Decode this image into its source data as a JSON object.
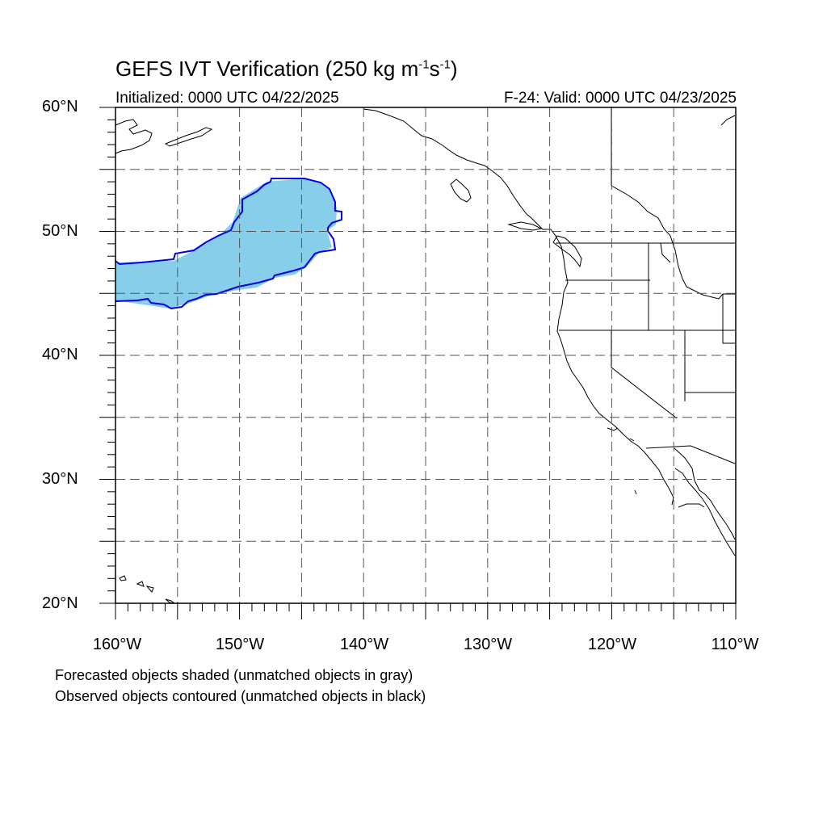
{
  "title": {
    "main": "GEFS IVT Verification (250 kg m",
    "sup1": "-1",
    "mid": "s",
    "sup2": "-1",
    "end": ")"
  },
  "initialized": "Initialized: 0000 UTC 04/22/2025",
  "valid": "F-24: Valid: 0000 UTC 04/23/2025",
  "lat_labels": [
    "60°N",
    "50°N",
    "40°N",
    "30°N",
    "20°N"
  ],
  "lon_labels": [
    "160°W",
    "150°W",
    "140°W",
    "130°W",
    "120°W",
    "110°W"
  ],
  "captions": {
    "forecast": "Forecasted objects shaded (unmatched objects in gray)",
    "observed": "Observed objects contoured (unmatched objects in black)"
  },
  "colors": {
    "forecast_fill": "#87ceeb",
    "observed_contour": "#0000ee",
    "coastline": "#000000",
    "grid": "#555555"
  },
  "map_extent": {
    "lon": [
      -160,
      -110
    ],
    "lat": [
      20,
      60
    ]
  },
  "grid_spacing_deg": 5
}
